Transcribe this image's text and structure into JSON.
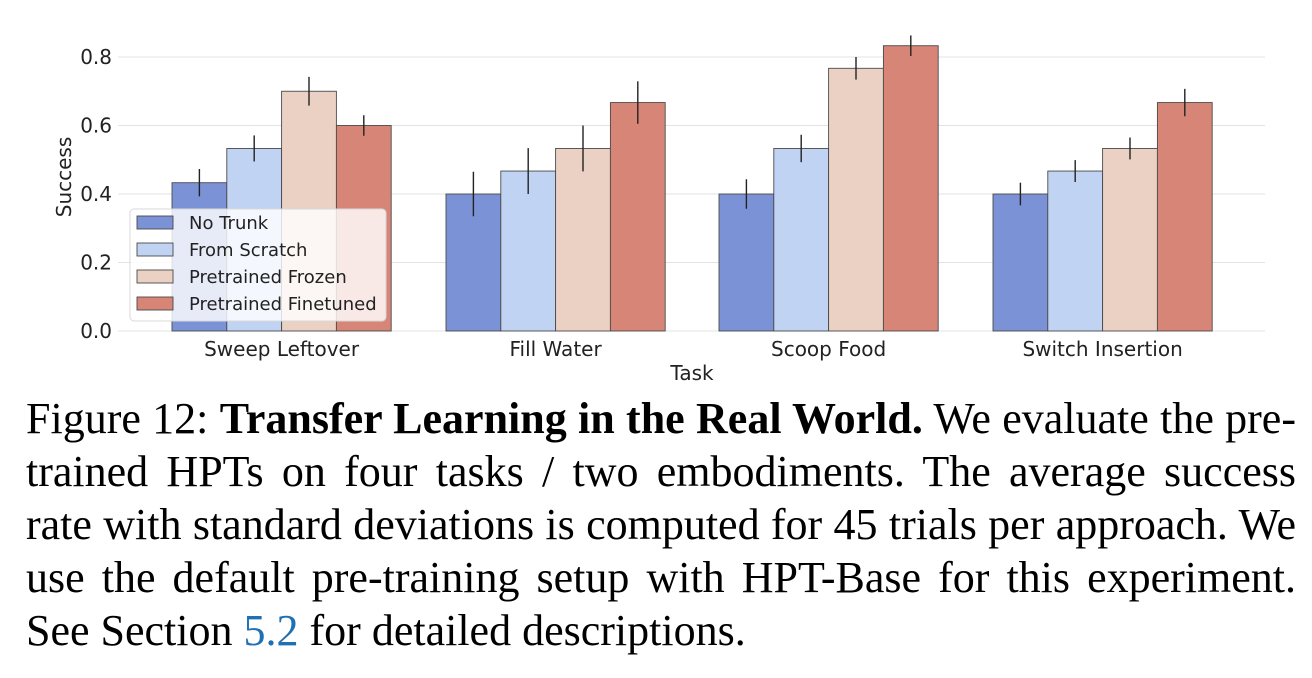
{
  "chart_data": {
    "type": "bar",
    "xlabel": "Task",
    "ylabel": "Success",
    "ylim": [
      0,
      0.85
    ],
    "yticks": [
      "0.0",
      "0.2",
      "0.4",
      "0.6",
      "0.8"
    ],
    "grid": true,
    "legend_position": "lower-left",
    "categories": [
      "Sweep Leftover",
      "Fill Water",
      "Scoop Food",
      "Switch Insertion"
    ],
    "series": [
      {
        "name": "No Trunk",
        "color": "#7b93d6",
        "values": [
          0.433,
          0.4,
          0.4,
          0.4
        ],
        "errors": [
          0.04,
          0.065,
          0.043,
          0.033
        ]
      },
      {
        "name": "From Scratch",
        "color": "#c0d3f3",
        "values": [
          0.533,
          0.467,
          0.533,
          0.467
        ],
        "errors": [
          0.038,
          0.067,
          0.04,
          0.032
        ]
      },
      {
        "name": "Pretrained Frozen",
        "color": "#ebd1c4",
        "values": [
          0.7,
          0.533,
          0.767,
          0.533
        ],
        "errors": [
          0.042,
          0.067,
          0.033,
          0.032
        ]
      },
      {
        "name": "Pretrained Finetuned",
        "color": "#d68577",
        "values": [
          0.6,
          0.667,
          0.833,
          0.667
        ],
        "errors": [
          0.03,
          0.062,
          0.03,
          0.04
        ]
      }
    ]
  },
  "caption": {
    "label": "Figure 12:",
    "title": "Transfer Learning in the Real World.",
    "body_before_ref": "We evaluate the pre-trained HPTs on four tasks / two embodiments. The average success rate with standard deviations is computed for 45 trials per approach. We use the default pre-training setup with HPT-Base for this experiment. See Section",
    "ref": "5.2",
    "body_after_ref": "for detailed descriptions."
  }
}
